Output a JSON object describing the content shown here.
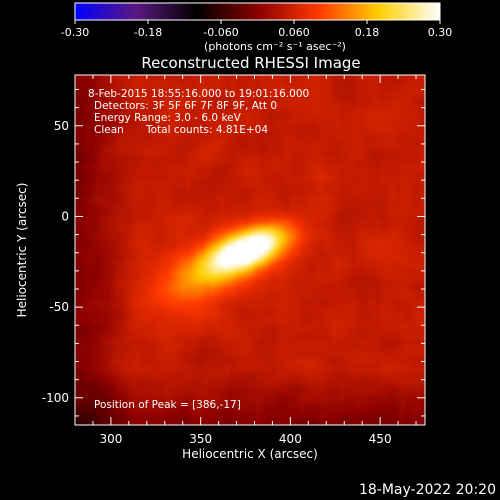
{
  "chart_data": {
    "type": "heatmap",
    "title": "Reconstructed RHESSI Image",
    "xlabel": "Heliocentric X (arcsec)",
    "ylabel": "Heliocentric Y (arcsec)",
    "xlim": [
      280,
      475
    ],
    "ylim": [
      -115,
      78
    ],
    "x_ticks": [
      300,
      350,
      400,
      450
    ],
    "y_ticks": [
      50,
      0,
      -50,
      -100
    ],
    "colorbar": {
      "range": [
        -0.3,
        0.3
      ],
      "tick_labels": [
        "-0.30",
        "-0.18",
        "-0.060",
        "0.060",
        "0.18",
        "0.30"
      ],
      "units_label": "(photons cm⁻² s⁻¹ asec⁻²)",
      "colormap": [
        "#0000ff",
        "#5a1880",
        "#000000",
        "#8a0000",
        "#ff3800",
        "#ffd000",
        "#ffffff"
      ]
    },
    "annotations": {
      "line1": "8-Feb-2015 18:55:16.000 to 19:01:16.000",
      "line2": "Detectors: 3F 5F 6F 7F 8F 9F, Att 0",
      "line3": "Energy Range: 3.0 - 6.0 keV",
      "line4_a": "Clean",
      "line4_b": "Total counts: 4.81E+04",
      "peak": "Position of Peak = [386,-17]"
    },
    "peak": {
      "x": 386,
      "y": -17,
      "value": 0.3
    },
    "sources": [
      {
        "x": 377,
        "y": -18,
        "sx": 16,
        "sy": 7,
        "angle_deg": 22,
        "amp": 0.3
      },
      {
        "x": 352,
        "y": -32,
        "sx": 22,
        "sy": 12,
        "angle_deg": 25,
        "amp": 0.1
      }
    ],
    "background_level": 0.05
  },
  "footer": {
    "date": "18-May-2022 20:20"
  }
}
